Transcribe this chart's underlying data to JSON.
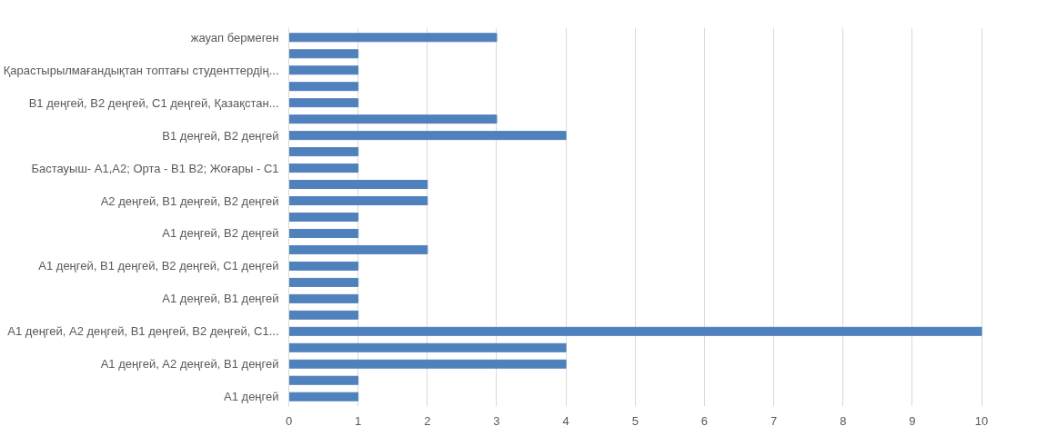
{
  "chart_data": {
    "type": "bar",
    "orientation": "horizontal",
    "categories": [
      "жауап бермеген",
      null,
      "Қарастырылмағандықтан топтағы студенттердің...",
      null,
      "В1 деңгей, В2 деңгей, С1 деңгей, Қазақстан...",
      null,
      "В1 деңгей, В2 деңгей",
      null,
      "Бастауыш- А1,А2; Орта - В1 В2; Жоғары - С1",
      null,
      "А2 деңгей, В1 деңгей, В2 деңгей",
      null,
      "А1 деңгей, В2 деңгей",
      null,
      "А1 деңгей, В1 деңгей, В2 деңгей, С1 деңгей",
      null,
      "А1 деңгей, В1 деңгей",
      null,
      "А1 деңгей, А2 деңгей, В1 деңгей, В2 деңгей, С1...",
      null,
      "А1 деңгей, А2 деңгей, В1 деңгей",
      null,
      "А1 деңгей"
    ],
    "values": [
      3,
      1,
      1,
      1,
      1,
      3,
      4,
      1,
      1,
      2,
      2,
      1,
      1,
      2,
      1,
      1,
      1,
      1,
      10,
      4,
      4,
      1,
      1
    ],
    "color": "#4f81bd",
    "xlim": [
      0,
      10
    ],
    "xticks": [
      0,
      1,
      2,
      3,
      4,
      5,
      6,
      7,
      8,
      9,
      10
    ],
    "grid": "x"
  }
}
